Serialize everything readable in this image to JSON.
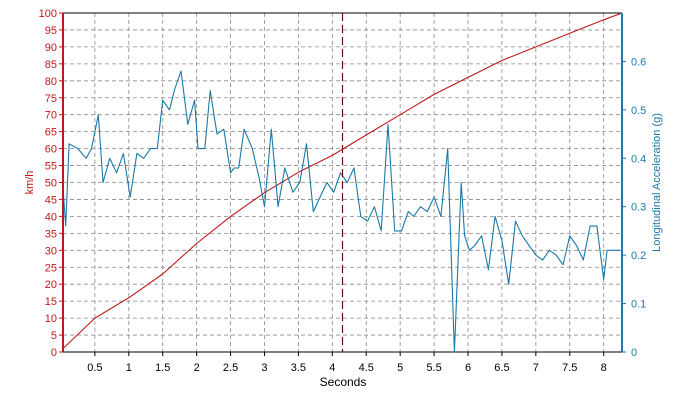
{
  "chart_data": {
    "type": "line",
    "xlabel": "Seconds",
    "x_ticks": [
      0.5,
      1,
      1.5,
      2,
      2.5,
      3,
      3.5,
      4,
      4.5,
      5,
      5.5,
      6,
      6.5,
      7,
      7.5,
      8
    ],
    "x_tick_labels": [
      "0.5",
      "1",
      "1.5",
      "2",
      "2.5",
      "3",
      "3.5",
      "4",
      "4.5",
      "5",
      "5.5",
      "6",
      "6.5",
      "7",
      "7.5",
      "8"
    ],
    "xlim": [
      0.03,
      8.27
    ],
    "grid": true,
    "cursor_x": 4.15,
    "left_axis": {
      "label": "km/h",
      "ylim": [
        0,
        100
      ],
      "ticks": [
        0,
        5,
        10,
        15,
        20,
        25,
        30,
        35,
        40,
        45,
        50,
        55,
        60,
        65,
        70,
        75,
        80,
        85,
        90,
        95,
        100
      ],
      "tick_labels": [
        "0",
        "5",
        "10",
        "15",
        "20",
        "25",
        "30",
        "35",
        "40",
        "45",
        "50",
        "55",
        "60",
        "65",
        "70",
        "75",
        "80",
        "85",
        "90",
        "95",
        "100"
      ],
      "color": "#c0181a"
    },
    "right_axis": {
      "label": "Longitudinal Acceleration (g)",
      "ylim": [
        0,
        0.7
      ],
      "ticks": [
        0,
        0.1,
        0.2,
        0.3,
        0.4,
        0.5,
        0.6
      ],
      "tick_labels": [
        "0",
        "0.1",
        "0.2",
        "0.3",
        "0.4",
        "0.5",
        "0.6"
      ],
      "color": "#1a7aa8"
    },
    "series": [
      {
        "axis": "left",
        "color": "#c0181a",
        "x": [
          0.03,
          0.5,
          1.0,
          1.5,
          2.0,
          2.5,
          3.0,
          3.5,
          4.0,
          4.5,
          5.0,
          5.5,
          6.0,
          6.5,
          7.0,
          7.5,
          8.0,
          8.27
        ],
        "values": [
          1,
          10,
          16,
          23,
          32,
          40,
          47,
          53,
          58,
          64,
          70,
          76,
          81,
          86,
          90,
          94,
          98,
          100
        ]
      },
      {
        "axis": "right",
        "color": "#1a7aa8",
        "x": [
          0.03,
          0.07,
          0.12,
          0.25,
          0.37,
          0.45,
          0.55,
          0.62,
          0.72,
          0.82,
          0.92,
          1.02,
          1.12,
          1.22,
          1.32,
          1.42,
          1.5,
          1.6,
          1.67,
          1.77,
          1.87,
          1.97,
          2.02,
          2.12,
          2.2,
          2.3,
          2.4,
          2.5,
          2.55,
          2.62,
          2.7,
          2.82,
          2.92,
          3.0,
          3.1,
          3.2,
          3.3,
          3.42,
          3.52,
          3.62,
          3.72,
          3.82,
          3.92,
          4.02,
          4.12,
          4.22,
          4.32,
          4.42,
          4.52,
          4.62,
          4.72,
          4.82,
          4.92,
          5.02,
          5.12,
          5.2,
          5.3,
          5.4,
          5.5,
          5.6,
          5.7,
          5.8,
          5.9,
          5.95,
          6.02,
          6.1,
          6.2,
          6.3,
          6.4,
          6.5,
          6.6,
          6.7,
          6.8,
          6.9,
          7.0,
          7.1,
          7.2,
          7.3,
          7.4,
          7.5,
          7.6,
          7.7,
          7.8,
          7.9,
          8.0,
          8.05,
          8.15,
          8.25
        ],
        "values": [
          0.34,
          0.26,
          0.43,
          0.42,
          0.4,
          0.42,
          0.49,
          0.35,
          0.4,
          0.37,
          0.41,
          0.32,
          0.41,
          0.4,
          0.42,
          0.42,
          0.52,
          0.5,
          0.54,
          0.58,
          0.47,
          0.52,
          0.42,
          0.42,
          0.54,
          0.45,
          0.46,
          0.37,
          0.38,
          0.38,
          0.46,
          0.42,
          0.36,
          0.3,
          0.46,
          0.3,
          0.38,
          0.33,
          0.35,
          0.43,
          0.29,
          0.32,
          0.35,
          0.33,
          0.37,
          0.35,
          0.38,
          0.28,
          0.27,
          0.3,
          0.25,
          0.47,
          0.25,
          0.25,
          0.29,
          0.28,
          0.3,
          0.29,
          0.32,
          0.28,
          0.42,
          0.0,
          0.35,
          0.24,
          0.21,
          0.22,
          0.24,
          0.17,
          0.28,
          0.23,
          0.14,
          0.27,
          0.24,
          0.22,
          0.2,
          0.19,
          0.21,
          0.2,
          0.18,
          0.24,
          0.22,
          0.19,
          0.26,
          0.26,
          0.15,
          0.21,
          0.21,
          0.21
        ]
      }
    ]
  }
}
